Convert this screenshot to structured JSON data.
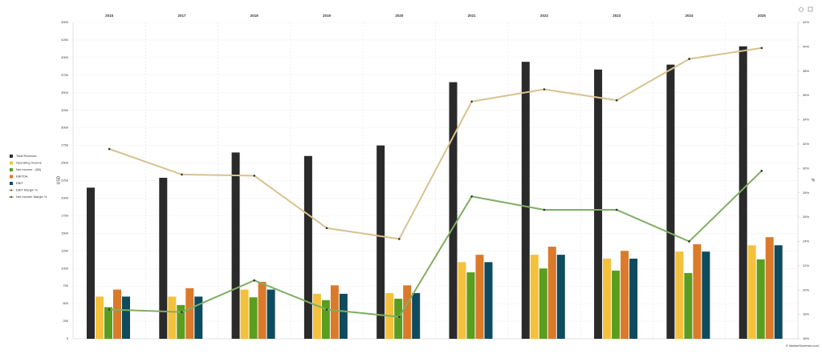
{
  "chart_data": {
    "type": "bar",
    "categories": [
      "2016",
      "2017",
      "2018",
      "2019",
      "2020",
      "2021",
      "2022",
      "2023",
      "2024",
      "2025"
    ],
    "y_label": "USD",
    "y2_label": "%",
    "ylim": [
      0,
      4500
    ],
    "yticks": [
      0,
      250,
      500,
      750,
      1000,
      1250,
      1500,
      1750,
      2000,
      2250,
      2500,
      2750,
      3000,
      3250,
      3500,
      3750,
      4000,
      4250,
      4500
    ],
    "y2lim": [
      16,
      42
    ],
    "y2ticks": [
      {
        "value": 16,
        "label": "16%"
      },
      {
        "value": 18,
        "label": "18%"
      },
      {
        "value": 20,
        "label": "20%"
      },
      {
        "value": 22,
        "label": "22%"
      },
      {
        "value": 24,
        "label": "24%"
      },
      {
        "value": 26,
        "label": "26%"
      },
      {
        "value": 28,
        "label": "28%"
      },
      {
        "value": 30,
        "label": "30%"
      },
      {
        "value": 32,
        "label": "32%"
      },
      {
        "value": 34,
        "label": "34%"
      },
      {
        "value": 36,
        "label": "36%"
      },
      {
        "value": 38,
        "label": "38%"
      },
      {
        "value": 40,
        "label": "40%"
      },
      {
        "value": 42,
        "label": "42%"
      }
    ],
    "grid": true,
    "legend": "left",
    "series": [
      {
        "name": "Total Revenue",
        "type": "bar",
        "color": "#2a2a2a",
        "values": [
          2150,
          2290,
          2650,
          2600,
          2750,
          3650,
          3940,
          3830,
          3900,
          4160
        ]
      },
      {
        "name": "Operating Income",
        "type": "bar",
        "color": "#f4c13d",
        "values": [
          600,
          600,
          700,
          640,
          650,
          1090,
          1195,
          1140,
          1240,
          1330
        ]
      },
      {
        "name": "Net Income - (Bil)",
        "type": "bar",
        "color": "#5a9e1f",
        "values": [
          450,
          480,
          590,
          550,
          570,
          945,
          1000,
          970,
          935,
          1130
        ]
      },
      {
        "name": "EBITDA",
        "type": "bar",
        "color": "#da7a2a",
        "values": [
          700,
          720,
          810,
          760,
          760,
          1195,
          1310,
          1250,
          1345,
          1445
        ]
      },
      {
        "name": "EBIT",
        "type": "bar",
        "color": "#0e4b5e",
        "values": [
          600,
          600,
          700,
          640,
          650,
          1090,
          1195,
          1140,
          1240,
          1330
        ]
      },
      {
        "name": "EBIT Margin %",
        "type": "line",
        "axis": "y2",
        "color": "#d9c28f",
        "values": [
          31.6,
          29.5,
          29.4,
          25.1,
          24.2,
          35.5,
          36.5,
          35.6,
          39.0,
          39.9
        ]
      },
      {
        "name": "Net Income Margin %",
        "type": "line",
        "axis": "y2",
        "color": "#7fae63",
        "values": [
          18.4,
          18.2,
          20.8,
          18.4,
          17.8,
          27.7,
          26.6,
          26.6,
          24.0,
          29.8
        ]
      }
    ],
    "credit": "© MarketScreener.com"
  }
}
